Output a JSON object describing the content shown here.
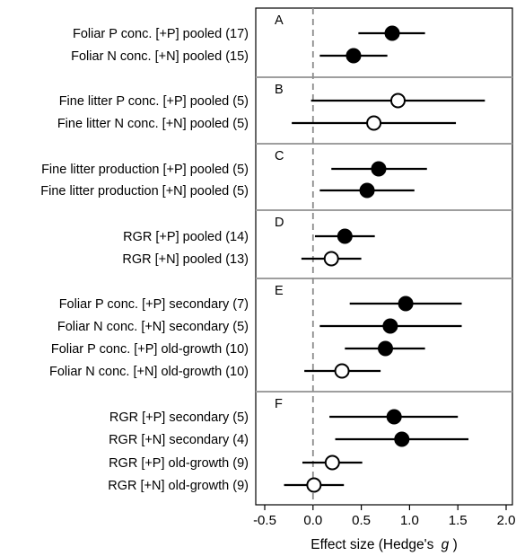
{
  "chart_data": {
    "type": "forest",
    "xlabel": "Effect size (Hedge's",
    "xlabel_italic": "g",
    "xlabel_close": ")",
    "xlim": [
      -0.65,
      2.12
    ],
    "x_ticks": [
      -0.5,
      0.0,
      0.5,
      1.0,
      1.5,
      2.0
    ],
    "x_tick_labels": [
      "-0.5",
      "0.0",
      "0.5",
      "1.0",
      "1.5",
      "2.0"
    ],
    "reference_line": 0,
    "legend": "none",
    "marker_meaning": "filled = significant, open = not significant (inferred from fill only)",
    "panels": [
      {
        "letter": "A",
        "rows": [
          {
            "label": "Foliar P conc. [+P] pooled (17)",
            "estimate": 0.82,
            "ci_low": 0.47,
            "ci_high": 1.16,
            "filled": true
          },
          {
            "label": "Foliar N conc. [+N] pooled (15)",
            "estimate": 0.42,
            "ci_low": 0.07,
            "ci_high": 0.77,
            "filled": true
          }
        ]
      },
      {
        "letter": "B",
        "rows": [
          {
            "label": "Fine litter P conc. [+P] pooled (5)",
            "estimate": 0.88,
            "ci_low": -0.02,
            "ci_high": 1.78,
            "filled": false
          },
          {
            "label": "Fine litter N conc. [+N] pooled (5)",
            "estimate": 0.63,
            "ci_low": -0.22,
            "ci_high": 1.48,
            "filled": false
          }
        ]
      },
      {
        "letter": "C",
        "rows": [
          {
            "label": "Fine litter production [+P] pooled (5)",
            "estimate": 0.68,
            "ci_low": 0.19,
            "ci_high": 1.18,
            "filled": true
          },
          {
            "label": "Fine litter production [+N] pooled (5)",
            "estimate": 0.56,
            "ci_low": 0.07,
            "ci_high": 1.05,
            "filled": true
          }
        ]
      },
      {
        "letter": "D",
        "rows": [
          {
            "label": "RGR [+P] pooled (14)",
            "estimate": 0.33,
            "ci_low": 0.02,
            "ci_high": 0.64,
            "filled": true
          },
          {
            "label": "RGR [+N] pooled (13)",
            "estimate": 0.19,
            "ci_low": -0.12,
            "ci_high": 0.5,
            "filled": false
          }
        ]
      },
      {
        "letter": "E",
        "rows": [
          {
            "label": "Foliar P conc. [+P] secondary (7)",
            "estimate": 0.96,
            "ci_low": 0.38,
            "ci_high": 1.54,
            "filled": true
          },
          {
            "label": "Foliar N conc. [+N] secondary (5)",
            "estimate": 0.8,
            "ci_low": 0.07,
            "ci_high": 1.54,
            "filled": true
          },
          {
            "label": "Foliar P conc. [+P] old-growth (10)",
            "estimate": 0.75,
            "ci_low": 0.33,
            "ci_high": 1.16,
            "filled": true
          },
          {
            "label": "Foliar N conc. [+N] old-growth (10)",
            "estimate": 0.3,
            "ci_low": -0.09,
            "ci_high": 0.7,
            "filled": false
          }
        ]
      },
      {
        "letter": "F",
        "rows": [
          {
            "label": "RGR [+P] secondary (5)",
            "estimate": 0.84,
            "ci_low": 0.17,
            "ci_high": 1.5,
            "filled": true
          },
          {
            "label": "RGR [+N] secondary (4)",
            "estimate": 0.92,
            "ci_low": 0.23,
            "ci_high": 1.61,
            "filled": true
          },
          {
            "label": "RGR [+P] old-growth (9)",
            "estimate": 0.2,
            "ci_low": -0.11,
            "ci_high": 0.51,
            "filled": false
          },
          {
            "label": "RGR [+N] old-growth (9)",
            "estimate": 0.01,
            "ci_low": -0.3,
            "ci_high": 0.32,
            "filled": false
          }
        ]
      }
    ]
  },
  "colors": {
    "marker_fill": "#000000",
    "marker_open_fill": "#ffffff",
    "line": "#000000",
    "panel_divider": "#9e9e9e",
    "reference_line": "#8c8c8c"
  }
}
